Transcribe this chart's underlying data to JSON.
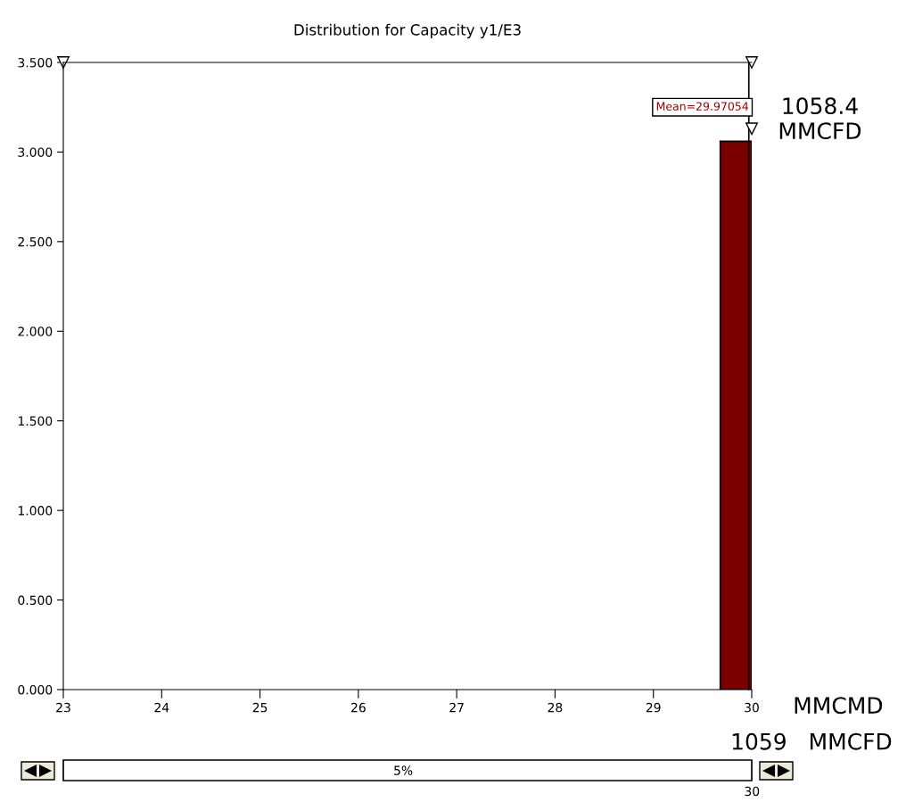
{
  "chart_data": {
    "type": "histogram",
    "title": "Distribution for Capacity y1/E3",
    "bins": [
      29.68,
      30
    ],
    "values": [
      3.06
    ],
    "color": "#7a0000",
    "xlim": [
      23,
      30
    ],
    "xticks": [
      23,
      24,
      25,
      26,
      27,
      28,
      29,
      30
    ],
    "ylim": [
      0,
      3.5
    ],
    "yticks": [
      {
        "value": 0,
        "label": "0.000"
      },
      {
        "value": 0.5,
        "label": "0.500"
      },
      {
        "value": 1.0,
        "label": "1.000"
      },
      {
        "value": 1.5,
        "label": "1.500"
      },
      {
        "value": 2.0,
        "label": "2.000"
      },
      {
        "value": 2.5,
        "label": "2.500"
      },
      {
        "value": 3.0,
        "label": "3.000"
      },
      {
        "value": 3.5,
        "label": "3.500"
      }
    ],
    "ref_lines": [
      {
        "axis": "x",
        "value": 29.97054,
        "label": "Mean=29.97054",
        "color": "#000000"
      }
    ],
    "annotations": [
      "1058.4\nMMCFD",
      "MMCMD",
      "1059   MMCFD",
      "5%",
      "30"
    ],
    "grid": false
  }
}
